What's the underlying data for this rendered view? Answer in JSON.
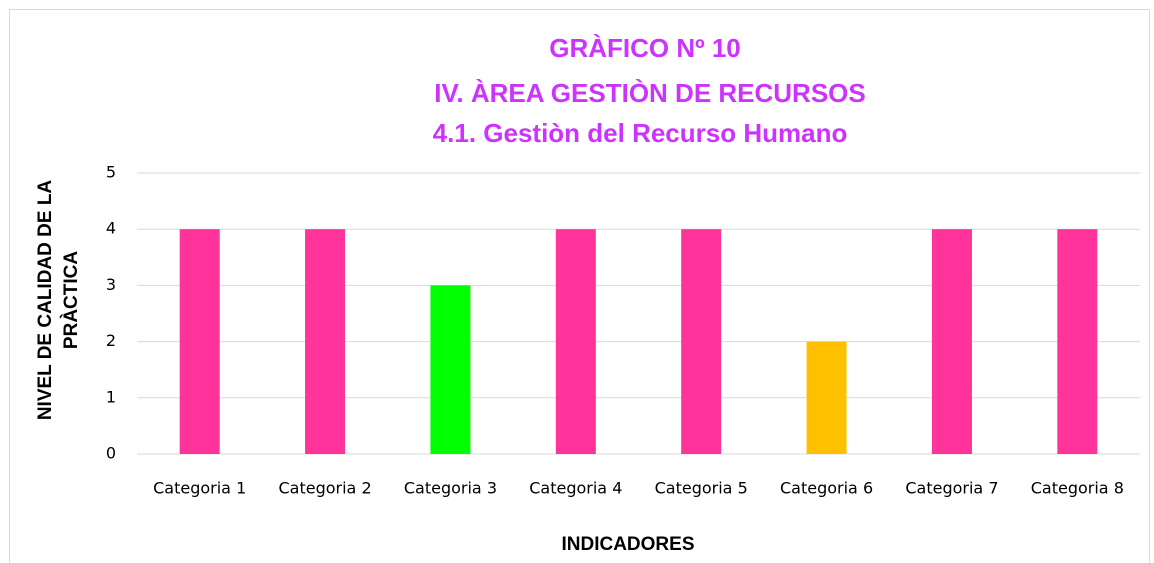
{
  "chart_data": {
    "type": "bar",
    "title": [
      "GRÀFICO Nº 10",
      "IV. ÀREA GESTIÒN DE RECURSOS",
      "4.1. Gestiòn del Recurso Humano"
    ],
    "y_label": [
      "NIVEL DE CALIDAD DE LA",
      "PRÀCTICA"
    ],
    "x_label": "INDICADORES",
    "categories": [
      "Categoria 1",
      "Categoria 2",
      "Categoria 3",
      "Categoria 4",
      "Categoria 5",
      "Categoria 6",
      "Categoria 7",
      "Categoria 8"
    ],
    "values": [
      4,
      4,
      3,
      4,
      4,
      2,
      4,
      4
    ],
    "colors": [
      "#ff3399",
      "#ff3399",
      "#00ff00",
      "#ff3399",
      "#ff3399",
      "#ffc000",
      "#ff3399",
      "#ff3399"
    ],
    "ylim": [
      0,
      5
    ],
    "yticks": [
      0,
      1,
      2,
      3,
      4,
      5
    ],
    "grid": true
  }
}
